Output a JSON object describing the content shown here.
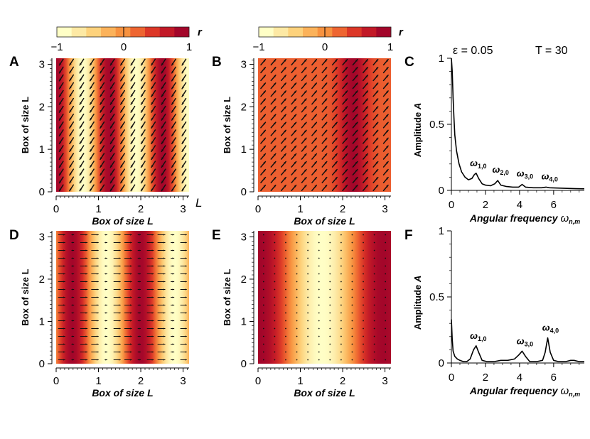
{
  "colorbars": [
    {
      "label": "r",
      "ticks": [
        "−1",
        "0",
        "1"
      ]
    },
    {
      "label": "r",
      "ticks": [
        "−1",
        "0",
        "1"
      ]
    }
  ],
  "colormap": [
    "#ffffc6",
    "#fde9a4",
    "#fdd27c",
    "#fbb25a",
    "#f7923f",
    "#ee6531",
    "#dc3727",
    "#c21927",
    "#a3062a"
  ],
  "stray_label": "L",
  "chart_data": [
    {
      "panel": "A",
      "type": "heatmap",
      "title": "",
      "xlabel": "Box of size  L",
      "ylabel": "Box of size  L",
      "xlim": [
        0,
        3.1416
      ],
      "ylim": [
        0,
        3.1416
      ],
      "xticks": [
        "0",
        "1",
        "2",
        "3"
      ],
      "yticks": [
        "0",
        "1",
        "2",
        "3"
      ],
      "field_r": {
        "form": "cos",
        "k": 5.0,
        "phase": 0.0
      },
      "arrows": {
        "dx": -0.55,
        "dy": -0.85,
        "length": "uniform",
        "grid": [
          13,
          17
        ]
      }
    },
    {
      "panel": "B",
      "type": "heatmap",
      "title": "",
      "xlabel": "Box of size  L",
      "ylabel": "Box of size  L",
      "xlim": [
        0,
        3.1416
      ],
      "ylim": [
        0,
        3.1416
      ],
      "xticks": [
        "0",
        "1",
        "2",
        "3"
      ],
      "yticks": [
        "0",
        "1",
        "2",
        "3"
      ],
      "field_r": {
        "form": "peak",
        "base": 0.28,
        "amp": 0.72,
        "center": 2.25,
        "width": 0.35
      },
      "arrows": {
        "dx": 0.65,
        "dy": 0.76,
        "length": "uniform",
        "grid": [
          13,
          17
        ]
      }
    },
    {
      "panel": "C",
      "type": "line",
      "title": "",
      "xlabel": "Angular frequency",
      "xlabel_symbol": "ω",
      "xlabel_sub": "n,m",
      "ylabel": "Amplitude",
      "ylabel_symbol": "A",
      "xlim": [
        0,
        7.8
      ],
      "ylim": [
        0,
        1.0
      ],
      "xticks": [
        "0",
        "2",
        "4",
        "6"
      ],
      "yticks": [
        "0",
        "0.5",
        "1"
      ],
      "annotations_top": [
        "ε = 0.05",
        "T = 30"
      ],
      "peaks": [
        {
          "symbol": "ω",
          "sub": "1,0",
          "x": 1.41,
          "y": 0.13
        },
        {
          "symbol": "ω",
          "sub": "2,0",
          "x": 2.72,
          "y": 0.08
        },
        {
          "symbol": "ω",
          "sub": "3,0",
          "x": 4.15,
          "y": 0.05
        },
        {
          "symbol": "ω",
          "sub": "4,0",
          "x": 5.6,
          "y": 0.03
        }
      ],
      "series": [
        {
          "name": "A",
          "x": [
            0.0,
            0.05,
            0.1,
            0.15,
            0.2,
            0.3,
            0.45,
            0.6,
            0.8,
            1.0,
            1.2,
            1.35,
            1.45,
            1.6,
            1.8,
            2.0,
            2.3,
            2.55,
            2.72,
            2.9,
            3.2,
            3.6,
            3.95,
            4.15,
            4.35,
            4.8,
            5.3,
            5.55,
            5.75,
            6.2,
            6.8,
            7.3,
            7.8
          ],
          "y": [
            1.0,
            0.9,
            0.7,
            0.55,
            0.42,
            0.3,
            0.2,
            0.14,
            0.1,
            0.08,
            0.09,
            0.12,
            0.13,
            0.09,
            0.05,
            0.04,
            0.035,
            0.05,
            0.075,
            0.04,
            0.03,
            0.025,
            0.025,
            0.045,
            0.025,
            0.02,
            0.02,
            0.025,
            0.02,
            0.018,
            0.015,
            0.013,
            0.012
          ]
        }
      ]
    },
    {
      "panel": "D",
      "type": "heatmap",
      "title": "",
      "xlabel": "Box of size  L",
      "ylabel": "Box of size  L",
      "xlim": [
        0,
        3.1416
      ],
      "ylim": [
        0,
        3.1416
      ],
      "xticks": [
        "0",
        "1",
        "2",
        "3"
      ],
      "yticks": [
        "0",
        "1",
        "2",
        "3"
      ],
      "field_r": {
        "form": "cos",
        "k": 3.9,
        "phase": -1.5
      },
      "arrows": {
        "dx": 1.0,
        "dy": 0.0,
        "length": "scaled",
        "grid": [
          12,
          17
        ]
      }
    },
    {
      "panel": "E",
      "type": "heatmap",
      "title": "",
      "xlabel": "Box of size  L",
      "ylabel": "Box of size  L",
      "xlim": [
        0,
        3.1416
      ],
      "ylim": [
        0,
        3.1416
      ],
      "xticks": [
        "0",
        "1",
        "2",
        "3"
      ],
      "yticks": [
        "0",
        "1",
        "2",
        "3"
      ],
      "field_r": {
        "form": "cos",
        "k": 2.15,
        "phase": -0.1
      },
      "arrows": {
        "dx": 0.0,
        "dy": 1.0,
        "length": "tiny",
        "grid": [
          12,
          17
        ]
      }
    },
    {
      "panel": "F",
      "type": "line",
      "title": "",
      "xlabel": "Angular frequency",
      "xlabel_symbol": "ω",
      "xlabel_sub": "n,m",
      "ylabel": "Amplitude",
      "ylabel_symbol": "A",
      "xlim": [
        0,
        7.8
      ],
      "ylim": [
        0,
        1.0
      ],
      "xticks": [
        "0",
        "2",
        "4",
        "6"
      ],
      "yticks": [
        "0",
        "0.5",
        "1"
      ],
      "annotations_top": [],
      "peaks": [
        {
          "symbol": "ω",
          "sub": "1,0",
          "x": 1.41,
          "y": 0.13
        },
        {
          "symbol": "ω",
          "sub": "3,0",
          "x": 4.15,
          "y": 0.09
        },
        {
          "symbol": "ω",
          "sub": "4,0",
          "x": 5.65,
          "y": 0.19
        }
      ],
      "series": [
        {
          "name": "A",
          "x": [
            0.0,
            0.05,
            0.1,
            0.2,
            0.35,
            0.5,
            0.7,
            0.9,
            1.1,
            1.3,
            1.45,
            1.6,
            1.8,
            2.1,
            2.5,
            2.9,
            3.3,
            3.7,
            3.95,
            4.15,
            4.35,
            4.6,
            5.0,
            5.35,
            5.5,
            5.65,
            5.8,
            6.0,
            6.3,
            6.7,
            7.0,
            7.2,
            7.5,
            7.8
          ],
          "y": [
            0.33,
            0.18,
            0.09,
            0.05,
            0.03,
            0.02,
            0.01,
            0.01,
            0.03,
            0.1,
            0.13,
            0.08,
            0.02,
            0.01,
            0.01,
            0.02,
            0.02,
            0.03,
            0.06,
            0.09,
            0.05,
            0.01,
            0.01,
            0.02,
            0.08,
            0.19,
            0.08,
            0.02,
            0.01,
            0.01,
            0.02,
            0.02,
            0.01,
            0.01
          ]
        }
      ]
    }
  ]
}
